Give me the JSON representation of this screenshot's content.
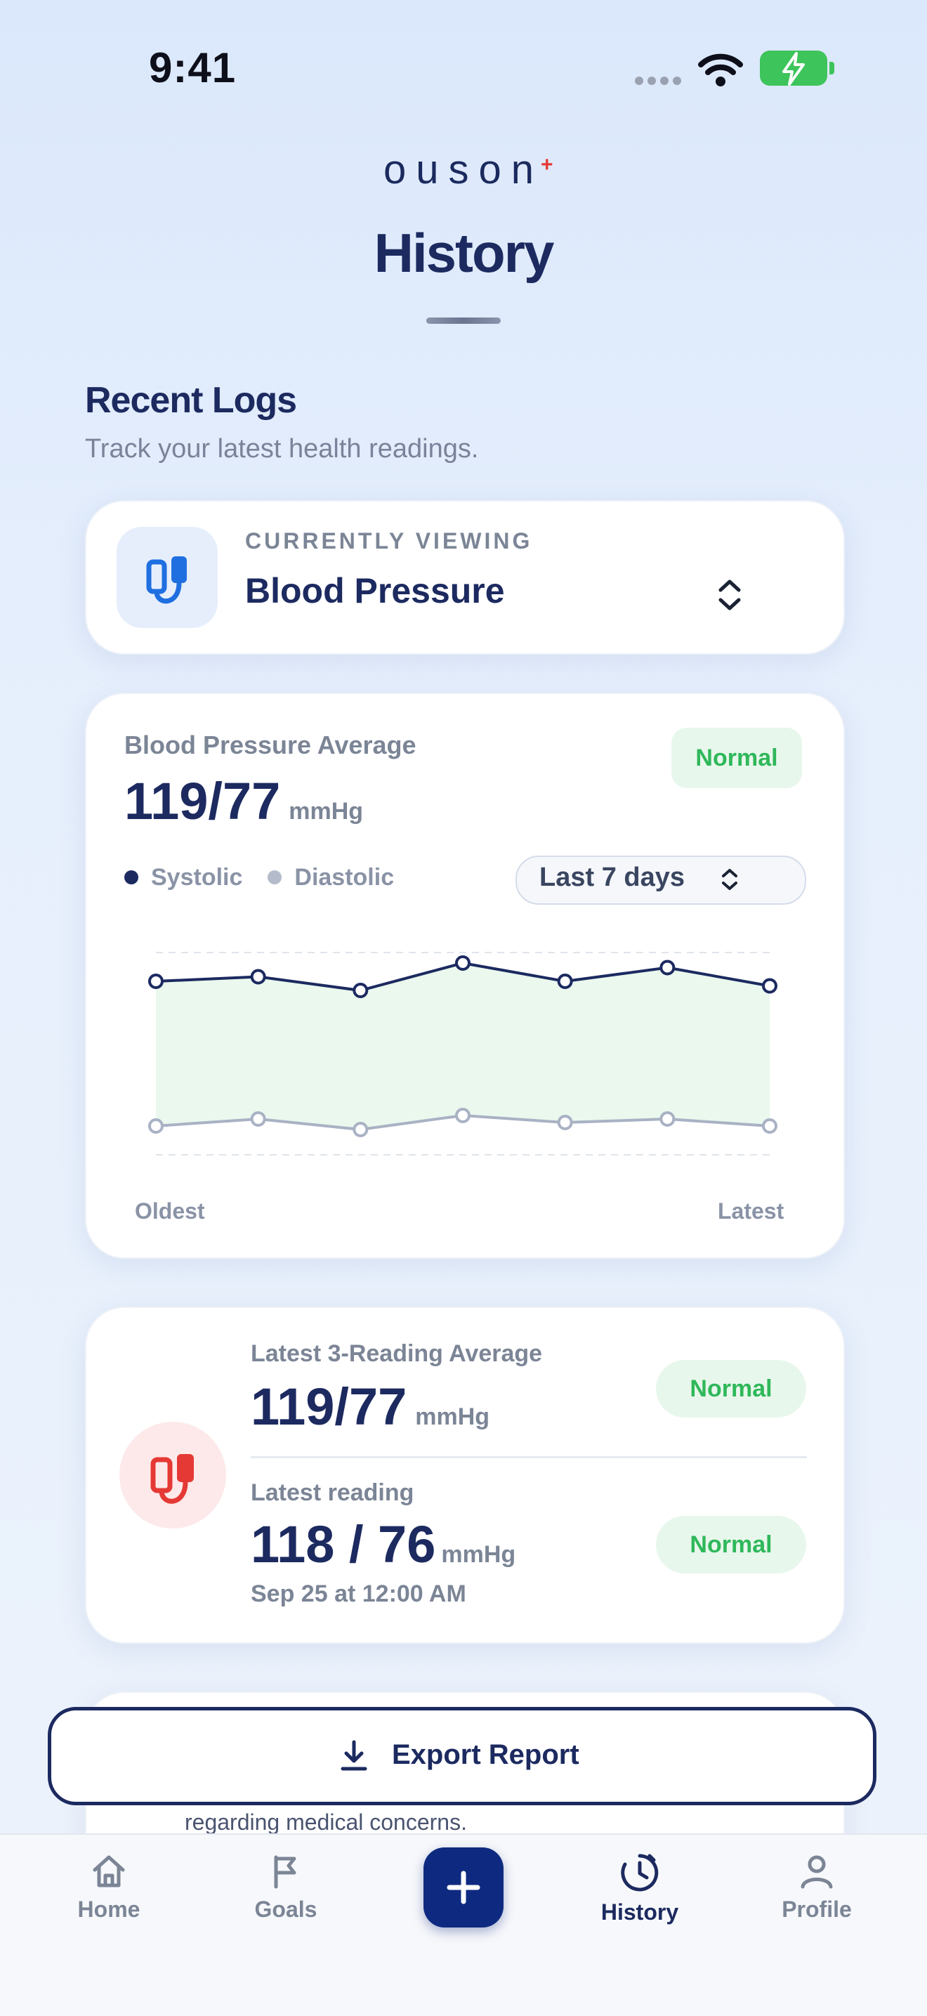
{
  "status_bar": {
    "time": "9:41"
  },
  "brand": {
    "name": "ouson"
  },
  "page": {
    "title": "History",
    "section_title": "Recent Logs",
    "section_subtitle": "Track your latest health readings."
  },
  "viewing": {
    "label": "CURRENTLY VIEWING",
    "value": "Blood Pressure",
    "icon": "blood-pressure-cuff-icon"
  },
  "average_card": {
    "label": "Blood Pressure Average",
    "value": "119/77",
    "unit": "mmHg",
    "status": "Normal",
    "legend_systolic": "Systolic",
    "legend_diastolic": "Diastolic",
    "range": "Last 7 days",
    "x_start": "Oldest",
    "x_end": "Latest"
  },
  "chart_data": {
    "type": "line",
    "series": [
      {
        "name": "Systolic",
        "color": "#1c2a60",
        "values": [
          118,
          119,
          116,
          122,
          118,
          121,
          117
        ]
      },
      {
        "name": "Diastolic",
        "color": "#a9b2c4",
        "values": [
          75,
          77,
          74,
          78,
          76,
          77,
          75
        ]
      }
    ],
    "normal_band_color": "#eaf8ee",
    "xlabel": "",
    "ylabel": "",
    "grid": true
  },
  "latest_card": {
    "avg_label": "Latest 3-Reading Average",
    "avg_value": "119/77",
    "avg_unit": "mmHg",
    "avg_status": "Normal",
    "reading_label": "Latest reading",
    "reading_value": "118 / 76",
    "reading_unit": "mmHg",
    "reading_date": "Sep 25 at 12:00 AM",
    "reading_status": "Normal",
    "icon": "blood-pressure-cuff-icon",
    "icon_color": "#e53935"
  },
  "peek_card": {
    "text": "regarding medical concerns."
  },
  "export": {
    "label": "Export Report"
  },
  "tabs": [
    {
      "label": "Home",
      "icon": "home-icon"
    },
    {
      "label": "Goals",
      "icon": "flag-icon"
    },
    {
      "label": "History",
      "icon": "history-icon"
    },
    {
      "label": "Profile",
      "icon": "profile-icon"
    }
  ],
  "colors": {
    "primary": "#1c2a60",
    "accent": "#0e2a80",
    "success": "#2fb85a"
  }
}
